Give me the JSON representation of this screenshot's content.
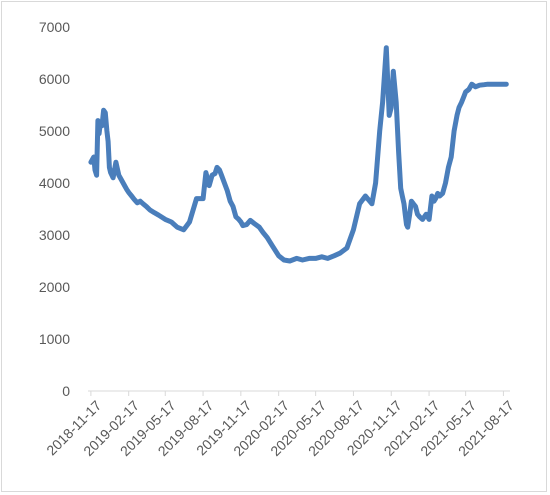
{
  "chart_data": {
    "type": "line",
    "title": "",
    "xlabel": "",
    "ylabel": "",
    "ylim": [
      0,
      7000
    ],
    "y_ticks": [
      "0",
      "1000",
      "2000",
      "3000",
      "4000",
      "5000",
      "6000",
      "7000"
    ],
    "x_ticks": [
      "2018-11-17",
      "2019-02-17",
      "2019-05-17",
      "2019-08-17",
      "2019-11-17",
      "2020-02-17",
      "2020-05-17",
      "2020-08-17",
      "2020-11-17",
      "2021-02-17",
      "2021-05-17",
      "2021-08-17"
    ],
    "grid": false,
    "legend": "none",
    "line_color": "#4a7ebb",
    "x": [
      "2018-11-17",
      "2018-11-24",
      "2018-11-27",
      "2018-12-01",
      "2018-12-04",
      "2018-12-07",
      "2018-12-10",
      "2018-12-14",
      "2018-12-18",
      "2018-12-22",
      "2018-12-26",
      "2018-12-29",
      "2019-01-01",
      "2019-01-04",
      "2019-01-10",
      "2019-01-17",
      "2019-01-24",
      "2019-01-31",
      "2019-02-07",
      "2019-02-12",
      "2019-02-17",
      "2019-02-24",
      "2019-03-03",
      "2019-03-10",
      "2019-03-17",
      "2019-03-24",
      "2019-04-01",
      "2019-04-10",
      "2019-04-20",
      "2019-05-01",
      "2019-05-17",
      "2019-06-01",
      "2019-06-15",
      "2019-07-01",
      "2019-07-15",
      "2019-08-01",
      "2019-08-17",
      "2019-08-24",
      "2019-09-01",
      "2019-09-08",
      "2019-09-15",
      "2019-09-20",
      "2019-09-26",
      "2019-10-01",
      "2019-10-08",
      "2019-10-15",
      "2019-10-22",
      "2019-10-29",
      "2019-11-05",
      "2019-11-12",
      "2019-11-17",
      "2019-11-22",
      "2019-12-01",
      "2019-12-10",
      "2019-12-20",
      "2020-01-01",
      "2020-01-10",
      "2020-01-20",
      "2020-02-01",
      "2020-02-17",
      "2020-03-01",
      "2020-03-15",
      "2020-04-01",
      "2020-04-15",
      "2020-05-01",
      "2020-05-17",
      "2020-06-01",
      "2020-06-15",
      "2020-07-01",
      "2020-07-15",
      "2020-08-01",
      "2020-08-17",
      "2020-09-01",
      "2020-09-15",
      "2020-10-01",
      "2020-10-10",
      "2020-10-20",
      "2020-10-27",
      "2020-11-05",
      "2020-11-12",
      "2020-11-17",
      "2020-11-22",
      "2020-11-29",
      "2020-12-05",
      "2020-12-10",
      "2020-12-14",
      "2020-12-18",
      "2020-12-21",
      "2020-12-24",
      "2020-12-27",
      "2021-01-01",
      "2021-01-05",
      "2021-01-10",
      "2021-01-15",
      "2021-01-20",
      "2021-01-25",
      "2021-02-01",
      "2021-02-10",
      "2021-02-17",
      "2021-02-24",
      "2021-03-01",
      "2021-03-05",
      "2021-03-10",
      "2021-03-15",
      "2021-03-22",
      "2021-03-29",
      "2021-04-05",
      "2021-04-12",
      "2021-04-19",
      "2021-04-26",
      "2021-05-01",
      "2021-05-07",
      "2021-05-12",
      "2021-05-17",
      "2021-05-25",
      "2021-06-01",
      "2021-06-10",
      "2021-06-20",
      "2021-07-01",
      "2021-07-10",
      "2021-07-20",
      "2021-08-01",
      "2021-08-10",
      "2021-08-17",
      "2021-08-24",
      "2021-09-01"
    ],
    "values": [
      4400,
      4500,
      4250,
      4150,
      5200,
      4950,
      5150,
      5100,
      5400,
      5350,
      5000,
      4800,
      4300,
      4200,
      4100,
      4400,
      4150,
      4050,
      3950,
      3880,
      3820,
      3750,
      3680,
      3620,
      3650,
      3600,
      3550,
      3480,
      3430,
      3380,
      3300,
      3250,
      3150,
      3100,
      3250,
      3700,
      3700,
      4200,
      3950,
      4150,
      4180,
      4300,
      4250,
      4150,
      4000,
      3850,
      3650,
      3550,
      3350,
      3300,
      3250,
      3180,
      3200,
      3280,
      3220,
      3150,
      3050,
      2950,
      2800,
      2600,
      2520,
      2500,
      2550,
      2520,
      2550,
      2550,
      2580,
      2550,
      2600,
      2650,
      2750,
      3100,
      3600,
      3750,
      3600,
      4000,
      5000,
      5550,
      6600,
      5300,
      5450,
      6150,
      5550,
      4600,
      3900,
      3750,
      3600,
      3400,
      3200,
      3150,
      3400,
      3650,
      3600,
      3550,
      3400,
      3350,
      3300,
      3400,
      3300,
      3750,
      3650,
      3700,
      3800,
      3750,
      3800,
      4000,
      4300,
      4500,
      5000,
      5300,
      5450,
      5550,
      5650,
      5750,
      5800,
      5900,
      5850,
      5880,
      5890,
      5900,
      5900,
      5900,
      5900,
      5900,
      5900,
      5900
    ]
  }
}
